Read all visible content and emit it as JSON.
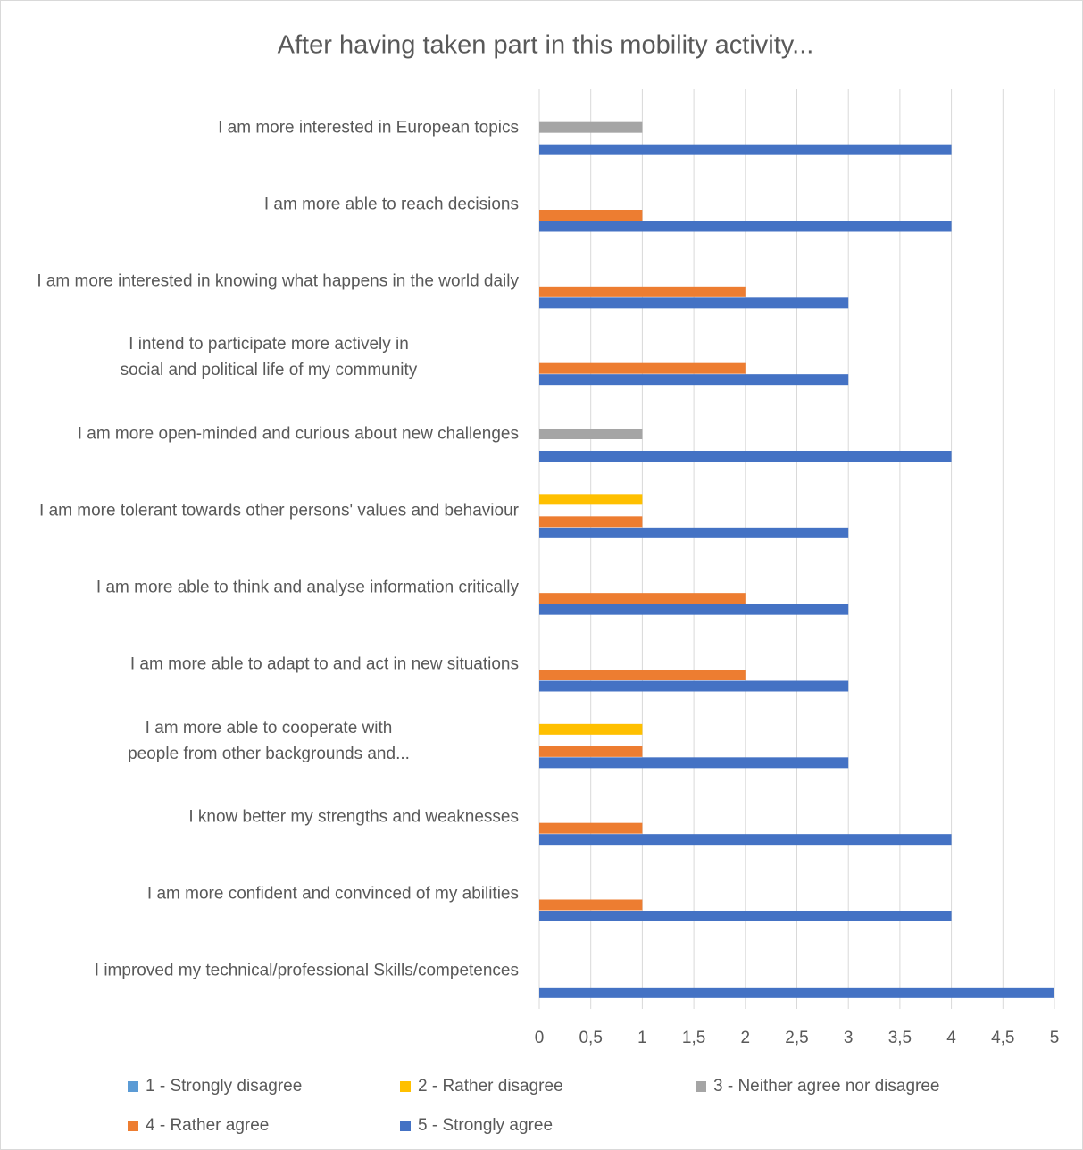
{
  "chart_data": {
    "type": "bar",
    "orientation": "horizontal",
    "title": "After having taken part in this mobility activity...",
    "categories": [
      "I am more interested in European topics",
      "I am more able to reach decisions",
      "I am more interested in knowing what happens in the world daily",
      "I intend to participate more actively in social and political life of my community",
      "I am more open-minded and curious about new challenges",
      "I am more tolerant towards other persons' values and behaviour",
      "I am more able to think and analyse information critically",
      "I am more able to adapt to and act in new situations",
      "I am more able to cooperate with people from other backgrounds and...",
      "I know better my strengths and weaknesses",
      "I am more confident and convinced of my abilities",
      "I improved my technical/professional Skills/competences"
    ],
    "series": [
      {
        "name": "1 - Strongly disagree",
        "color": "#5b9bd5",
        "values": [
          null,
          null,
          null,
          null,
          null,
          null,
          null,
          null,
          null,
          null,
          null,
          null
        ]
      },
      {
        "name": "2 - Rather disagree",
        "color": "#ffc000",
        "values": [
          null,
          null,
          null,
          null,
          null,
          1,
          null,
          null,
          1,
          null,
          null,
          null
        ]
      },
      {
        "name": "3 - Neither agree nor disagree",
        "color": "#a5a5a5",
        "values": [
          1,
          null,
          null,
          null,
          1,
          null,
          null,
          null,
          null,
          null,
          null,
          null
        ]
      },
      {
        "name": "4 - Rather agree",
        "color": "#ed7d31",
        "values": [
          null,
          1,
          2,
          2,
          null,
          1,
          2,
          2,
          1,
          1,
          1,
          null
        ]
      },
      {
        "name": "5 - Strongly agree",
        "color": "#4472c4",
        "values": [
          4,
          4,
          3,
          3,
          4,
          3,
          3,
          3,
          3,
          4,
          4,
          5
        ]
      }
    ],
    "xlim": [
      0,
      5
    ],
    "xticks": [
      0,
      {
        "value": 0.5,
        "label": "0,5"
      },
      1,
      {
        "value": 1.5,
        "label": "1,5"
      },
      2,
      {
        "value": 2.5,
        "label": "2,5"
      },
      3,
      {
        "value": 3.5,
        "label": "3,5"
      },
      4,
      {
        "value": 4.5,
        "label": "4,5"
      },
      5
    ],
    "grid": true,
    "legend": "bottom"
  }
}
